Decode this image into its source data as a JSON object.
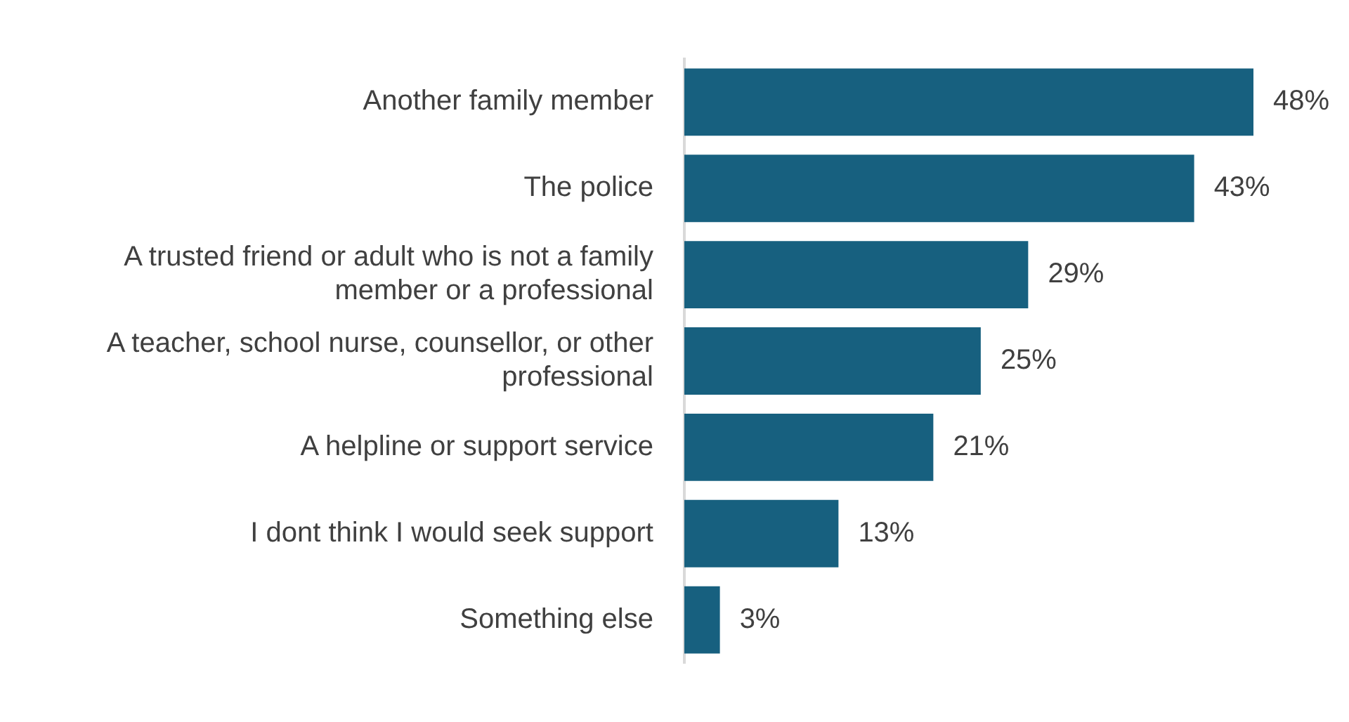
{
  "chart_data": {
    "type": "bar",
    "orientation": "horizontal",
    "categories": [
      "Another family member",
      "The police",
      "A trusted friend or adult who is not a family member or a professional",
      "A teacher, school nurse, counsellor, or other professional",
      "A helpline or support service",
      "I dont think I would seek support",
      "Something else"
    ],
    "values": [
      48,
      43,
      29,
      25,
      21,
      13,
      3
    ],
    "value_labels": [
      "48%",
      "43%",
      "29%",
      "25%",
      "21%",
      "13%",
      "3%"
    ],
    "color": "#17607f"
  }
}
